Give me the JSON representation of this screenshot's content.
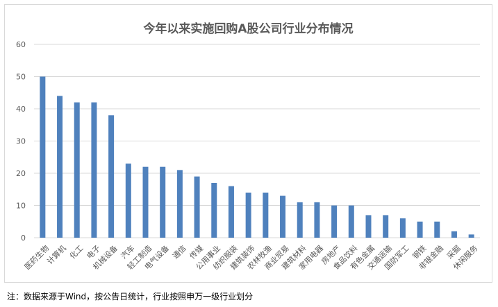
{
  "chart_data": {
    "type": "bar",
    "title": "今年以来实施回购A股公司行业分布情况",
    "categories": [
      "医药生物",
      "计算机",
      "化工",
      "电子",
      "机械设备",
      "汽车",
      "轻工制造",
      "电气设备",
      "通信",
      "传媒",
      "公用事业",
      "纺织服装",
      "建筑装饰",
      "农林牧渔",
      "商业贸易",
      "建筑材料",
      "家用电器",
      "房地产",
      "食品饮料",
      "有色金属",
      "交通运输",
      "国防军工",
      "钢铁",
      "非银金融",
      "采掘",
      "休闲服务"
    ],
    "values": [
      50,
      44,
      42,
      42,
      38,
      23,
      22,
      22,
      21,
      19,
      17,
      16,
      14,
      14,
      13,
      11,
      11,
      10,
      10,
      7,
      7,
      6,
      5,
      5,
      2,
      1
    ],
    "ylim": [
      0,
      60
    ],
    "yticks": [
      0,
      10,
      20,
      30,
      40,
      50,
      60
    ],
    "xlabel": "",
    "ylabel": "",
    "grid": true,
    "legend": "none",
    "bar_color": "#4f81bd"
  },
  "footnote": "注：数据来源于Wind，按公告日统计，行业按照申万一级行业划分"
}
